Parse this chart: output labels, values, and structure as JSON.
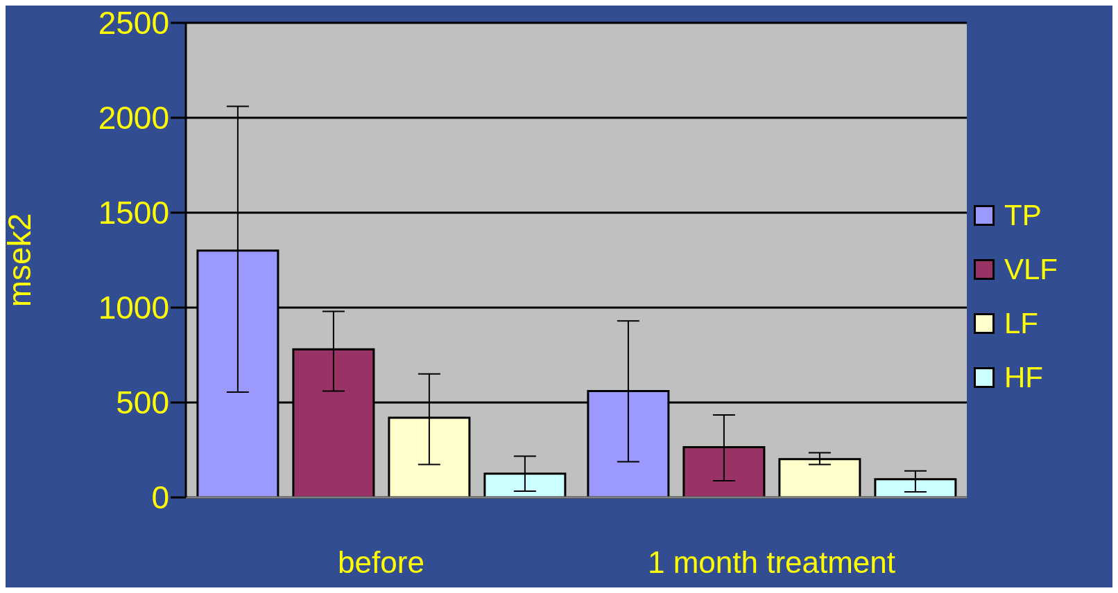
{
  "chart_data": {
    "type": "bar",
    "ylabel": "msek2",
    "categories": [
      "before",
      "1 month treatment"
    ],
    "series": [
      {
        "name": "TP",
        "color": "#9999ff",
        "values": [
          1300,
          560
        ],
        "errors": [
          [
            555,
            2060
          ],
          [
            188,
            930
          ]
        ]
      },
      {
        "name": "VLF",
        "color": "#993366",
        "values": [
          780,
          265
        ],
        "errors": [
          [
            560,
            980
          ],
          [
            88,
            434
          ]
        ]
      },
      {
        "name": "LF",
        "color": "#ffffcc",
        "values": [
          420,
          202
        ],
        "errors": [
          [
            173,
            651
          ],
          [
            173,
            235
          ]
        ]
      },
      {
        "name": "HF",
        "color": "#ccffff",
        "values": [
          125,
          96
        ],
        "errors": [
          [
            33,
            217
          ],
          [
            29,
            140
          ]
        ]
      }
    ],
    "ylim": [
      0,
      2500
    ],
    "yticks": [
      0,
      500,
      1000,
      1500,
      2000,
      2500
    ],
    "grid": "y",
    "legend": "right"
  }
}
